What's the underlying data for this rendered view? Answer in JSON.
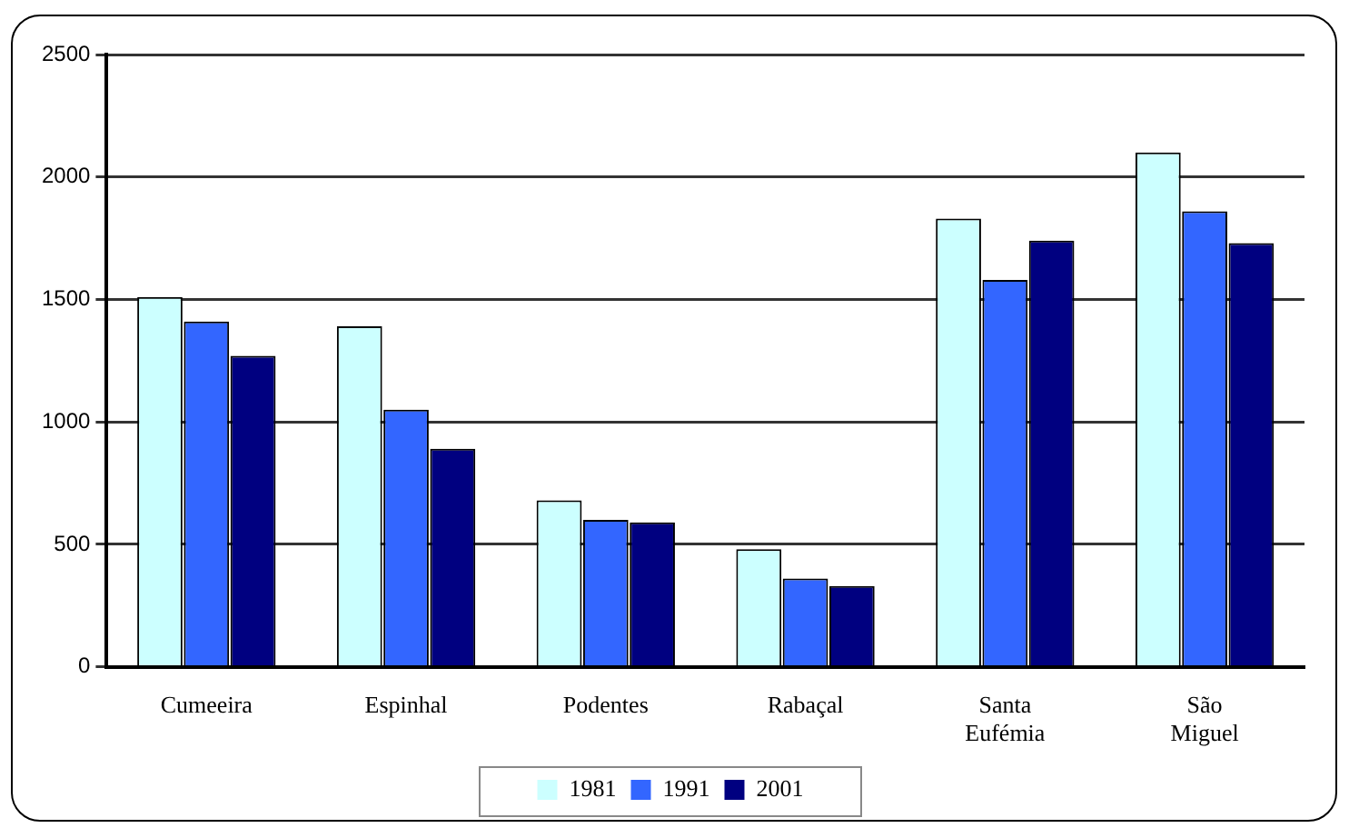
{
  "chart_data": {
    "type": "bar",
    "categories": [
      "Cumeeira",
      "Espinhal",
      "Podentes",
      "Rabaçal",
      "Santa Eufémia",
      "São Miguel"
    ],
    "series": [
      {
        "name": "1981",
        "color": "#ccffff",
        "values": [
          1510,
          1390,
          680,
          480,
          1830,
          2100
        ]
      },
      {
        "name": "1991",
        "color": "#3366ff",
        "values": [
          1410,
          1050,
          600,
          360,
          1580,
          1860
        ]
      },
      {
        "name": "2001",
        "color": "#000080",
        "values": [
          1270,
          890,
          590,
          330,
          1740,
          1730
        ]
      }
    ],
    "ylim": [
      0,
      2500
    ],
    "yticks": [
      0,
      500,
      1000,
      1500,
      2000,
      2500
    ],
    "grid": "y",
    "legend": "bottom"
  }
}
